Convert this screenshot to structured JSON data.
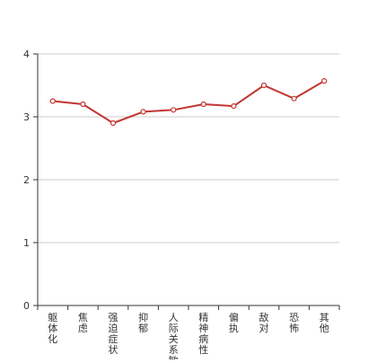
{
  "chart_data": {
    "type": "line",
    "categories": [
      "躯体化",
      "焦虑",
      "强迫症状",
      "抑郁",
      "人际关系敏感",
      "精神病性",
      "偏执",
      "敌对",
      "恐怖",
      "其他"
    ],
    "series": [
      {
        "values": [
          3.25,
          3.2,
          2.9,
          3.08,
          3.11,
          3.2,
          3.17,
          3.5,
          3.29,
          3.57
        ]
      }
    ],
    "ylim": [
      0,
      4
    ],
    "yticks": [
      0,
      1,
      2,
      3,
      4
    ],
    "grid": true,
    "legend": "none",
    "colors": {
      "line": "#c23531",
      "point_fill": "#ffffff",
      "grid": "#cccccc",
      "axis": "#333333"
    }
  }
}
